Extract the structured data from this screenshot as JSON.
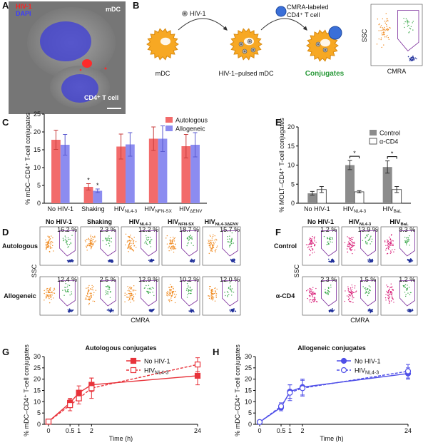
{
  "panel_labels": [
    "A",
    "B",
    "C",
    "D",
    "E",
    "F",
    "G",
    "H"
  ],
  "micrograph": {
    "virus_label": "HIV-1",
    "stain_label": "DAPI",
    "top_cell": "mDC",
    "bottom_cell": "CD4⁺ T cell"
  },
  "diagram": {
    "virus": "HIV-1",
    "tcell_line1": "CMRA-labeled",
    "tcell_line2": "CD4⁺ T cell",
    "cell1": "mDC",
    "cell2": "HIV-1–pulsed mDC",
    "cell3": "Conjugates",
    "ylabel": "SSC",
    "xlabel": "CMRA"
  },
  "chart_data": [
    {
      "type": "bar",
      "ylabel": "% mDC–CD4⁺ T-cell conjugates",
      "categories": [
        "No HIV-1",
        "Shaking",
        "HIV",
        "HIV",
        "HIV"
      ],
      "category_subs": [
        null,
        null,
        "NL4-3",
        "NFN-SX",
        "ΔENV"
      ],
      "series": [
        {
          "name": "Autologous",
          "color": "#f26b6b",
          "error_color": "#c83c3c",
          "values": [
            17.8,
            4.6,
            15.9,
            18.1,
            16.0
          ],
          "errors": [
            2.7,
            0.9,
            3.5,
            3.3,
            3.3
          ],
          "significance": [
            null,
            "*",
            null,
            null,
            null
          ]
        },
        {
          "name": "Allogeneic",
          "color": "#8c8cf0",
          "error_color": "#5a5ad0",
          "values": [
            16.4,
            3.5,
            16.5,
            18.1,
            16.4
          ],
          "errors": [
            2.9,
            0.5,
            3.3,
            3.6,
            3.4
          ],
          "significance": [
            null,
            "*",
            null,
            null,
            null
          ]
        }
      ],
      "ylim": [
        0,
        25
      ],
      "yticks": [
        0,
        5,
        10,
        15,
        20,
        25
      ],
      "legend": "upper right"
    },
    {
      "type": "bar",
      "ylabel": "% MOLT–CD4⁺ T-cell conjugates",
      "categories": [
        "No HIV-1",
        "HIV",
        "HIV"
      ],
      "category_subs": [
        null,
        "NL4-3",
        "BaL"
      ],
      "series": [
        {
          "name": "Control",
          "color": "#8c8c8c",
          "error_color": "#333333",
          "values": [
            2.6,
            10.0,
            9.5
          ],
          "errors": [
            0.5,
            1.2,
            1.6
          ]
        },
        {
          "name": "α-CD4",
          "color": "#ffffff",
          "stroke": "#333333",
          "error_color": "#333333",
          "values": [
            3.6,
            3.0,
            3.6
          ],
          "errors": [
            0.8,
            0.3,
            0.8
          ]
        }
      ],
      "significance": [
        null,
        "*",
        "*"
      ],
      "ylim": [
        0,
        20
      ],
      "yticks": [
        0,
        5,
        10,
        15,
        20
      ],
      "legend": "upper right"
    },
    {
      "type": "line",
      "title": "Autologous conjugates",
      "xlabel": "Time (h)",
      "ylabel": "% mDC–CD4⁺ T-cell conjugates",
      "x": [
        0,
        0.5,
        1,
        2,
        24
      ],
      "xlim": [
        0,
        24
      ],
      "xticks": [
        0,
        0.5,
        1,
        2,
        24
      ],
      "xscale": "sqrt",
      "ylim": [
        0,
        30
      ],
      "yticks": [
        0,
        5,
        10,
        15,
        20,
        25,
        30
      ],
      "legend": "upper right",
      "series": [
        {
          "name": "No HIV-1",
          "color": "#e8323a",
          "dashed": false,
          "marker": "square",
          "filled": true,
          "values": [
            1.2,
            9.5,
            14.0,
            17.5,
            21.5
          ],
          "errors": [
            0.3,
            2.0,
            3.0,
            3.0,
            4.0
          ]
        },
        {
          "name": "HIV",
          "name_sub": "NL4-3",
          "color": "#e8323a",
          "dashed": true,
          "marker": "square",
          "filled": false,
          "values": [
            1.2,
            8.5,
            11.5,
            16.0,
            26.5
          ],
          "errors": [
            0.3,
            2.5,
            2.5,
            4.5,
            3.0
          ]
        }
      ]
    },
    {
      "type": "line",
      "title": "Allogeneic conjugates",
      "xlabel": "Time (h)",
      "ylabel": "% mDC–CD4⁺ T-cell conjugates",
      "x": [
        0,
        0.5,
        1,
        2,
        24
      ],
      "xlim": [
        0,
        24
      ],
      "xticks": [
        0,
        0.5,
        1,
        2,
        24
      ],
      "xscale": "sqrt",
      "ylim": [
        0,
        30
      ],
      "yticks": [
        0,
        5,
        10,
        15,
        20,
        25,
        30
      ],
      "legend": "upper right",
      "series": [
        {
          "name": "No HIV-1",
          "color": "#4f4fe8",
          "dashed": false,
          "marker": "circle",
          "filled": true,
          "values": [
            1.0,
            7.5,
            14.5,
            16.5,
            22.5
          ],
          "errors": [
            0.3,
            1.5,
            3.0,
            3.5,
            2.5
          ]
        },
        {
          "name": "HIV",
          "name_sub": "NL4-3",
          "color": "#4f4fe8",
          "dashed": true,
          "marker": "circle",
          "filled": false,
          "values": [
            1.0,
            8.0,
            14.0,
            16.0,
            23.5
          ],
          "errors": [
            0.3,
            1.5,
            3.5,
            3.5,
            3.0
          ]
        }
      ]
    }
  ],
  "flow_d": {
    "columns": [
      "No HIV-1",
      "Shaking",
      "HIV",
      "HIV",
      "HIV"
    ],
    "column_subs": [
      null,
      null,
      "NL4-3",
      "NFN-SX",
      "NL4-3ΔENV"
    ],
    "rows": [
      "Autologous",
      "Allogeneic"
    ],
    "percents": [
      [
        "16.2 %",
        "2.3 %",
        "12.2 %",
        "18.7 %",
        "15.7 %"
      ],
      [
        "12.4 %",
        "2.5 %",
        "12.9 %",
        "10.2 %",
        "12.0 %"
      ]
    ],
    "ylabel": "SSC",
    "xlabel": "CMRA"
  },
  "flow_f": {
    "columns": [
      "No HIV-1",
      "HIV",
      "HIV"
    ],
    "column_subs": [
      null,
      "NL4-3",
      "BaL"
    ],
    "rows": [
      "Control",
      "α-CD4"
    ],
    "percents": [
      [
        "1.2 %",
        "13.9 %",
        "8.3 %"
      ],
      [
        "2.3 %",
        "1.5 %",
        "1.2 %"
      ]
    ],
    "ylabel": "SSC",
    "xlabel": "CMRA"
  }
}
